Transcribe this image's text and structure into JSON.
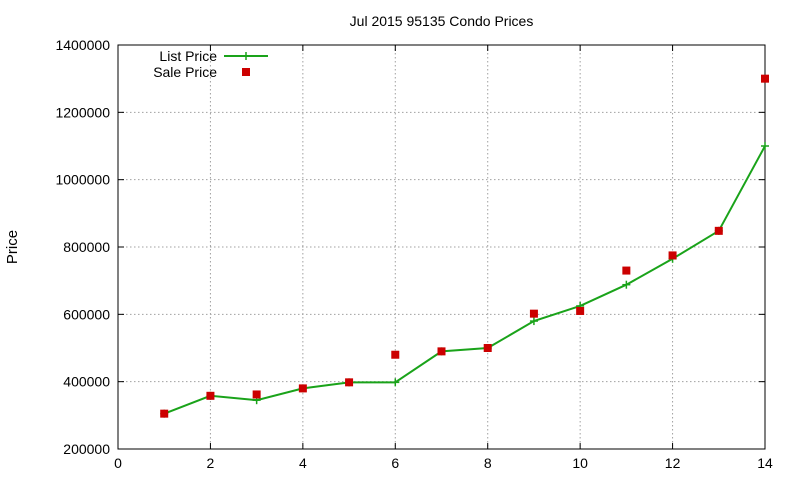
{
  "chart_data": {
    "type": "line",
    "title": "Jul 2015 95135 Condo Prices",
    "xlabel": "",
    "ylabel": "Price",
    "xlim": [
      0,
      14
    ],
    "ylim": [
      200000,
      1400000
    ],
    "x_ticks": [
      "0",
      "2",
      "4",
      "6",
      "8",
      "10",
      "12",
      "14"
    ],
    "y_ticks": [
      "200000",
      "400000",
      "600000",
      "800000",
      "1000000",
      "1200000",
      "1400000"
    ],
    "grid": true,
    "legend_position": "top-left",
    "series": [
      {
        "name": "List Price",
        "style": "line-with-plus-markers",
        "color": "#1aa31a",
        "x": [
          1,
          2,
          3,
          4,
          5,
          6,
          7,
          8,
          9,
          10,
          11,
          12,
          13,
          14
        ],
        "values": [
          305000,
          358000,
          345000,
          380000,
          398000,
          398000,
          490000,
          500000,
          580000,
          625000,
          688000,
          765000,
          848000,
          1100000
        ]
      },
      {
        "name": "Sale Price",
        "style": "square-markers",
        "color": "#cc0000",
        "x": [
          1,
          2,
          3,
          4,
          5,
          6,
          7,
          8,
          9,
          10,
          11,
          12,
          13,
          14
        ],
        "values": [
          305000,
          358000,
          362000,
          380000,
          398000,
          480000,
          490000,
          500000,
          602000,
          610000,
          730000,
          775000,
          848000,
          1300000
        ]
      }
    ]
  }
}
